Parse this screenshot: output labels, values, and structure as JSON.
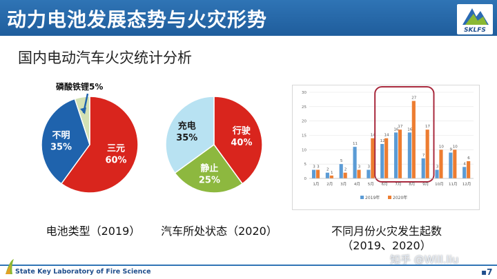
{
  "header": {
    "title": "动力电池发展态势与火灾形势",
    "logo_text": "SKLFS"
  },
  "subtitle": "国内电动汽车火灾统计分析",
  "chart_data": [
    {
      "type": "pie",
      "caption": "电池类型（2019）",
      "slices": [
        {
          "label": "三元",
          "value": 60,
          "pct": "60%",
          "color": "#d9251d"
        },
        {
          "label": "不明",
          "value": 35,
          "pct": "35%",
          "color": "#1f63ad"
        },
        {
          "label": "磷酸铁锂5%",
          "value": 5,
          "pct": "",
          "color": "#d3e1b4"
        }
      ]
    },
    {
      "type": "pie",
      "caption": "汽车所处状态（2020）",
      "slices": [
        {
          "label": "行驶",
          "value": 40,
          "pct": "40%",
          "color": "#d9251d"
        },
        {
          "label": "静止",
          "value": 25,
          "pct": "25%",
          "color": "#8db83f"
        },
        {
          "label": "充电",
          "value": 35,
          "pct": "35%",
          "color": "#b8e2f2"
        }
      ]
    },
    {
      "type": "bar",
      "caption": "不同月份火灾发生起数",
      "caption2": "（2019、2020）",
      "categories": [
        "1月",
        "2月",
        "3月",
        "4月",
        "5月",
        "6月",
        "7月",
        "8月",
        "9月",
        "10月",
        "11月",
        "12月"
      ],
      "series": [
        {
          "name": "2019年",
          "color": "#5b9bd5",
          "values": [
            3,
            2,
            5,
            11,
            3,
            12,
            16,
            16,
            7,
            3,
            9,
            4
          ]
        },
        {
          "name": "2020年",
          "color": "#ed7d31",
          "values": [
            3,
            1,
            2,
            3,
            14,
            14,
            17,
            27,
            17,
            10,
            10,
            6
          ]
        }
      ],
      "ylim": [
        0,
        30
      ],
      "yticks": [
        0,
        5,
        10,
        15,
        20,
        25,
        30
      ],
      "highlight_months": [
        "6月",
        "7月",
        "8月",
        "9月"
      ]
    }
  ],
  "footer": {
    "lab": "State Key Laboratory of Fire Science",
    "watermark": "知乎 @Will.liu",
    "page": "▪7"
  }
}
